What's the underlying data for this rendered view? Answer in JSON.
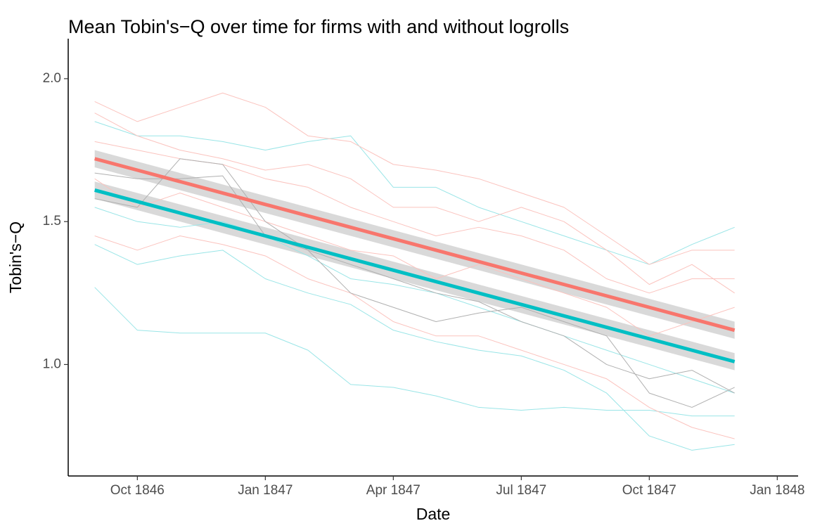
{
  "chart_data": {
    "type": "line",
    "title": "Mean Tobin's−Q over time for firms with and without logrolls",
    "xlabel": "Date",
    "ylabel": "Tobin's−Q",
    "x": [
      "1846-09",
      "1846-10",
      "1846-11",
      "1846-12",
      "1847-01",
      "1847-02",
      "1847-03",
      "1847-04",
      "1847-05",
      "1847-06",
      "1847-07",
      "1847-08",
      "1847-09",
      "1847-10",
      "1847-11",
      "1847-12"
    ],
    "xlim": [
      "1846-08",
      "1848-02"
    ],
    "xticks": [
      {
        "value": "1846-10",
        "label": "Oct 1846"
      },
      {
        "value": "1847-01",
        "label": "Jan 1847"
      },
      {
        "value": "1847-04",
        "label": "Apr 1847"
      },
      {
        "value": "1847-07",
        "label": "Jul 1847"
      },
      {
        "value": "1847-10",
        "label": "Oct 1847"
      },
      {
        "value": "1848-01",
        "label": "Jan 1848"
      }
    ],
    "ylim": [
      0.61,
      2.14
    ],
    "yticks": [
      1.0,
      1.5,
      2.0
    ],
    "yticklabels": [
      "1.0",
      "1.5",
      "2.0"
    ],
    "series": [
      {
        "color": "#99e5e7",
        "linewidth": 1,
        "values": [
          1.27,
          1.12,
          1.11,
          1.11,
          1.11,
          1.05,
          0.93,
          0.92,
          0.89,
          0.85,
          0.84,
          0.85,
          0.84,
          0.84,
          0.82,
          0.82
        ]
      },
      {
        "color": "#99e5e7",
        "linewidth": 1,
        "values": [
          1.42,
          1.35,
          1.38,
          1.4,
          1.3,
          1.25,
          1.21,
          1.12,
          1.08,
          1.05,
          1.03,
          0.98,
          0.9,
          0.75,
          0.7,
          0.72
        ]
      },
      {
        "color": "#99e5e7",
        "linewidth": 1,
        "values": [
          1.85,
          1.8,
          1.8,
          1.78,
          1.75,
          1.78,
          1.8,
          1.62,
          1.62,
          1.55,
          1.5,
          1.45,
          1.4,
          1.35,
          1.42,
          1.48
        ]
      },
      {
        "color": "#99e5e7",
        "linewidth": 1,
        "values": [
          1.55,
          1.5,
          1.48,
          1.5,
          1.45,
          1.38,
          1.3,
          1.28,
          1.25,
          1.2,
          1.15,
          1.1,
          1.05,
          1.0,
          0.95,
          0.9
        ]
      },
      {
        "color": "#fbc3be",
        "linewidth": 1,
        "values": [
          1.92,
          1.85,
          1.9,
          1.95,
          1.9,
          1.8,
          1.78,
          1.7,
          1.68,
          1.65,
          1.6,
          1.55,
          1.45,
          1.35,
          1.4,
          1.4
        ]
      },
      {
        "color": "#fbc3be",
        "linewidth": 1,
        "values": [
          1.78,
          1.75,
          1.72,
          1.7,
          1.65,
          1.62,
          1.55,
          1.5,
          1.45,
          1.48,
          1.45,
          1.4,
          1.3,
          1.25,
          1.3,
          1.3
        ]
      },
      {
        "color": "#fbc3be",
        "linewidth": 1,
        "values": [
          1.65,
          1.55,
          1.6,
          1.55,
          1.5,
          1.45,
          1.4,
          1.38,
          1.3,
          1.35,
          1.3,
          1.25,
          1.2,
          1.1,
          1.15,
          1.2
        ]
      },
      {
        "color": "#fbc3be",
        "linewidth": 1,
        "values": [
          1.45,
          1.4,
          1.45,
          1.42,
          1.38,
          1.3,
          1.25,
          1.15,
          1.1,
          1.1,
          1.05,
          1.0,
          0.95,
          0.85,
          0.78,
          0.74
        ]
      },
      {
        "color": "#fbc3be",
        "linewidth": 1,
        "values": [
          1.88,
          1.8,
          1.75,
          1.72,
          1.68,
          1.7,
          1.65,
          1.55,
          1.55,
          1.5,
          1.55,
          1.5,
          1.4,
          1.28,
          1.35,
          1.25
        ]
      },
      {
        "color": "#b0b0b0",
        "linewidth": 1,
        "values": [
          1.67,
          1.65,
          1.65,
          1.66,
          1.45,
          1.4,
          1.25,
          1.2,
          1.15,
          1.18,
          1.2,
          1.15,
          1.1,
          0.9,
          0.85,
          0.92
        ]
      },
      {
        "color": "#b0b0b0",
        "linewidth": 1,
        "values": [
          1.58,
          1.55,
          1.72,
          1.7,
          1.5,
          1.4,
          1.35,
          1.3,
          1.25,
          1.22,
          1.15,
          1.1,
          1.0,
          0.95,
          0.98,
          0.9
        ]
      },
      {
        "color": "#F8766D",
        "linewidth": 5,
        "band": 0.03,
        "band_color": "#cfcfcf",
        "values": [
          1.72,
          1.68,
          1.64,
          1.6,
          1.56,
          1.52,
          1.48,
          1.44,
          1.4,
          1.36,
          1.32,
          1.28,
          1.24,
          1.2,
          1.16,
          1.12
        ]
      },
      {
        "color": "#00BFC4",
        "linewidth": 5,
        "band": 0.03,
        "band_color": "#cfcfcf",
        "values": [
          1.61,
          1.57,
          1.53,
          1.49,
          1.45,
          1.41,
          1.37,
          1.33,
          1.29,
          1.25,
          1.21,
          1.17,
          1.13,
          1.09,
          1.05,
          1.01
        ]
      }
    ]
  }
}
